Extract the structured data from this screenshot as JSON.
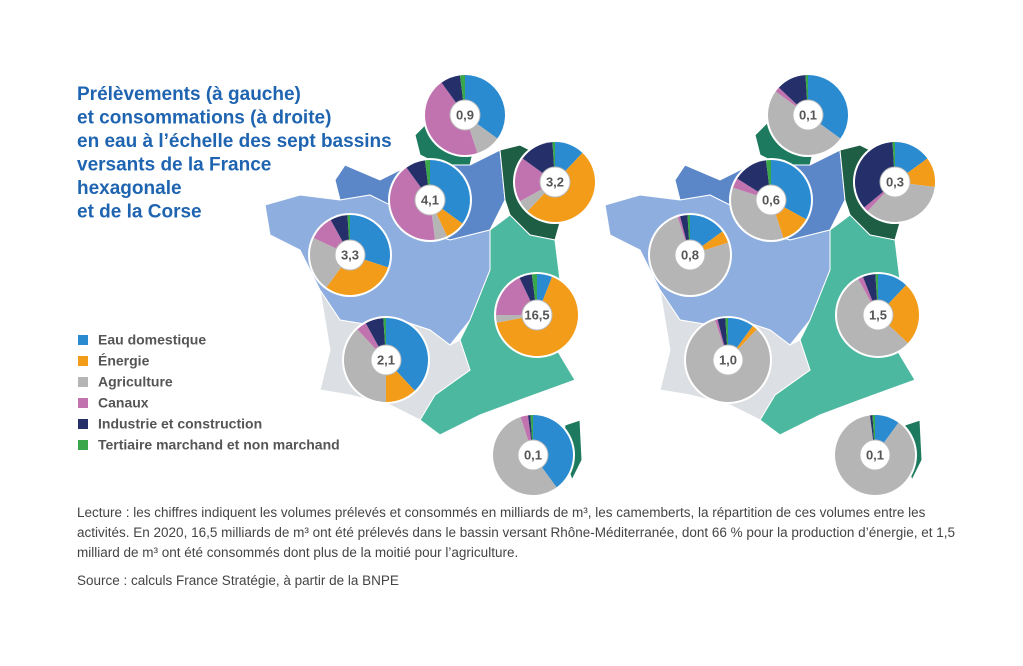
{
  "title": [
    "Prélèvements (à gauche)",
    "et consommations (à droite)",
    "en eau à l’échelle des sept bassins",
    "versants de la France",
    "hexagonale",
    "et de la Corse"
  ],
  "legend": [
    {
      "name": "Eau domestique",
      "color": "#2a8bd1"
    },
    {
      "name": "Énergie",
      "color": "#f39c1a"
    },
    {
      "name": "Agriculture",
      "color": "#b5b5b5"
    },
    {
      "name": "Canaux",
      "color": "#c173b0"
    },
    {
      "name": "Industrie et construction",
      "color": "#25306b"
    },
    {
      "name": "Tertiaire marchand et non marchand",
      "color": "#3aa84a"
    }
  ],
  "pies": [
    {
      "label": "0,9",
      "shares": [
        35,
        0,
        10,
        45,
        8,
        2
      ]
    },
    {
      "label": "4,1",
      "shares": [
        35,
        8,
        5,
        42,
        8,
        2
      ]
    },
    {
      "label": "3,2",
      "shares": [
        12,
        50,
        5,
        18,
        14,
        1
      ]
    },
    {
      "label": "3,3",
      "shares": [
        30,
        30,
        22,
        10,
        7,
        1
      ]
    },
    {
      "label": "16,5",
      "shares": [
        6,
        66,
        3,
        18,
        5,
        2
      ]
    },
    {
      "label": "2,1",
      "shares": [
        38,
        12,
        38,
        4,
        7,
        1
      ]
    },
    {
      "label": "0,1",
      "shares": [
        40,
        0,
        55,
        3,
        1,
        1
      ]
    },
    {
      "label": "0,1",
      "shares": [
        35,
        0,
        50,
        2,
        12,
        1
      ]
    },
    {
      "label": "0,6",
      "shares": [
        33,
        12,
        35,
        4,
        14,
        2
      ]
    },
    {
      "label": "0,3",
      "shares": [
        15,
        12,
        35,
        2,
        35,
        1
      ]
    },
    {
      "label": "0,8",
      "shares": [
        15,
        5,
        75,
        1,
        3,
        1
      ]
    },
    {
      "label": "1,0",
      "shares": [
        10,
        2,
        83,
        1,
        3,
        1
      ]
    },
    {
      "label": "1,5",
      "shares": [
        12,
        25,
        55,
        2,
        5,
        1
      ]
    },
    {
      "label": "0,1",
      "shares": [
        10,
        0,
        88,
        0,
        1,
        1
      ]
    }
  ],
  "caption": "Lecture : les chiffres indiquent les volumes prélevés et consommés en milliards de m³, les camemberts, la répartition de ces volumes entre les activités. En 2020, 16,5 milliards de m³ ont été prélevés dans le bassin versant Rhône-Méditerranée, dont 66 % pour la production d’énergie, et 1,5 milliard de m³ ont été consommés dont plus de la moitié pour l’agriculture.",
  "source": "Source : calculs France Stratégie, à partir de la BNPE"
}
